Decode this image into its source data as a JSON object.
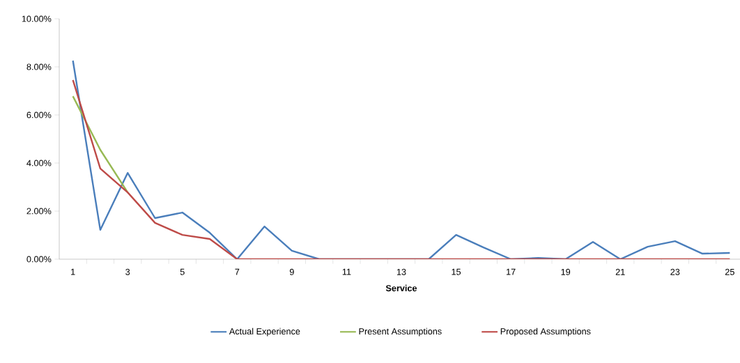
{
  "chart_data": {
    "type": "line",
    "xlabel": "Service",
    "categories": [
      "1",
      null,
      "3",
      null,
      "5",
      null,
      "7",
      null,
      "9",
      null,
      "11",
      null,
      "13",
      null,
      "15",
      null,
      "17",
      null,
      "19",
      null,
      "21",
      null,
      "23",
      null,
      "25"
    ],
    "ylim": [
      0,
      10
    ],
    "yticks": [
      {
        "value": 0,
        "label": "0.00%"
      },
      {
        "value": 2,
        "label": "2.00%"
      },
      {
        "value": 4,
        "label": "4.00%"
      },
      {
        "value": 6,
        "label": "6.00%"
      },
      {
        "value": 8,
        "label": "8.00%"
      },
      {
        "value": 10,
        "label": "10.00%"
      }
    ],
    "series": [
      {
        "name": "Actual Experience",
        "color": "#4a7ebb",
        "values": [
          8.26,
          1.22,
          3.59,
          1.71,
          1.94,
          1.1,
          0,
          1.36,
          0.35,
          0,
          0,
          0,
          0,
          0,
          1.01,
          0.49,
          0,
          0.05,
          0,
          0.72,
          0,
          0.52,
          0.75,
          0.23,
          0.26
        ]
      },
      {
        "name": "Present Assumptions",
        "color": "#98b954",
        "values": [
          6.78,
          4.55,
          2.78,
          null,
          null,
          null,
          null,
          null,
          null,
          null,
          null,
          null,
          null,
          null,
          null,
          null,
          null,
          null,
          null,
          null,
          null,
          null,
          null,
          null,
          null
        ]
      },
      {
        "name": "Proposed Assumptions",
        "color": "#be4b48",
        "values": [
          7.45,
          3.77,
          2.78,
          1.51,
          1.01,
          0.84,
          0,
          0,
          0,
          0,
          0,
          0,
          0,
          0,
          0,
          0,
          0,
          0,
          0,
          0,
          0,
          0,
          0,
          0,
          0
        ]
      }
    ],
    "legend": "bottom",
    "grid": false,
    "marker": "none",
    "line_style": "solid"
  }
}
